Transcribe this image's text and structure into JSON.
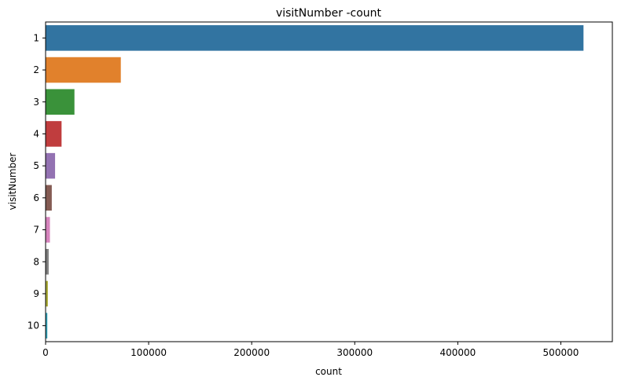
{
  "chart_data": {
    "type": "bar",
    "orientation": "horizontal",
    "title": "visitNumber -count",
    "xlabel": "count",
    "ylabel": "visitNumber",
    "categories": [
      "1",
      "2",
      "3",
      "4",
      "5",
      "6",
      "7",
      "8",
      "9",
      "10"
    ],
    "values": [
      522000,
      73000,
      28000,
      15500,
      9200,
      6000,
      4200,
      3000,
      2200,
      1700
    ],
    "xlim": [
      0,
      550000
    ],
    "xticks": [
      0,
      100000,
      200000,
      300000,
      400000,
      500000
    ],
    "xtick_labels": [
      "0",
      "100000",
      "200000",
      "300000",
      "400000",
      "500000"
    ],
    "grid": false,
    "legend": "none",
    "colors": [
      "#3274a1",
      "#e1812c",
      "#3a923a",
      "#c03d3e",
      "#9372b2",
      "#845b53",
      "#d684bd",
      "#7f7f7f",
      "#a9aa35",
      "#2ea1b8"
    ]
  }
}
